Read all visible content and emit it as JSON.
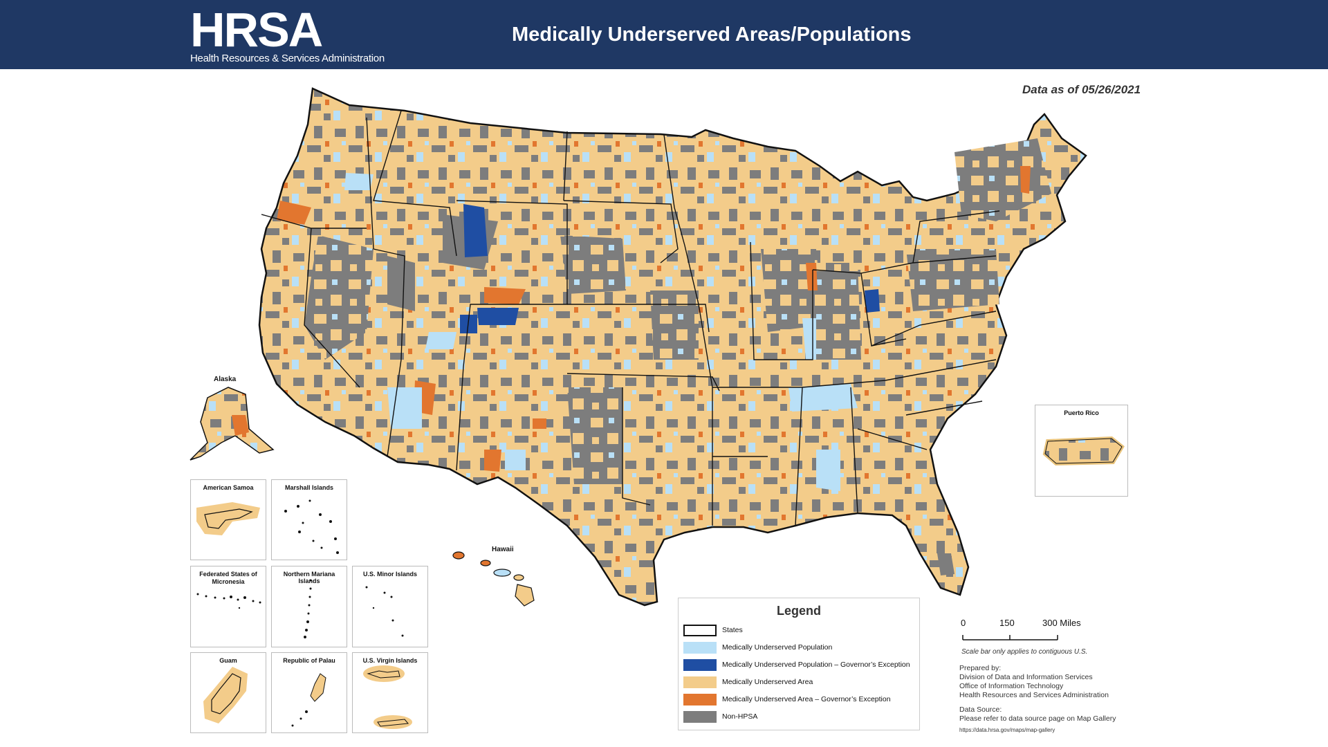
{
  "header": {
    "logo_text": "HRSA",
    "logo_subtitle": "Health Resources & Services Administration",
    "title": "Medically Underserved Areas/Populations",
    "background_color": "#1f3864"
  },
  "data_as_of": "Data as of 05/26/2021",
  "map_labels": {
    "alaska": "Alaska",
    "hawaii": "Hawaii",
    "puerto_rico": "Puerto Rico"
  },
  "insets": {
    "american_samoa": "American Samoa",
    "marshall_islands": "Marshall Islands",
    "micronesia": "Federated States of Micronesia",
    "northern_mariana": "Northern Mariana Islands",
    "minor_islands": "U.S. Minor Islands",
    "guam": "Guam",
    "palau": "Republic of Palau",
    "virgin_islands": "U.S. Virgin Islands"
  },
  "legend": {
    "title": "Legend",
    "items": [
      {
        "label": "States",
        "color": "#ffffff",
        "outline": true
      },
      {
        "label": "Medically Underserved Population",
        "color": "#b9e0f7"
      },
      {
        "label": "Medically Underserved Population – Governor’s Exception",
        "color": "#1f4ea3"
      },
      {
        "label": "Medically Underserved Area",
        "color": "#f3cc8a"
      },
      {
        "label": "Medically Underserved Area – Governor’s Exception",
        "color": "#e2762f"
      },
      {
        "label": "Non-HPSA",
        "color": "#7d7d7d"
      }
    ]
  },
  "scale_bar": {
    "ticks": [
      "0",
      "150",
      "300 Miles"
    ],
    "note": "Scale bar only applies to contiguous U.S."
  },
  "credits": {
    "prepared_by_label": "Prepared by:",
    "prepared_by": [
      "Division of Data and Information Services",
      "Office of Information Technology",
      "Health Resources and Services Administration"
    ],
    "data_source_label": "Data Source:",
    "data_source": "Please refer to data source page on Map Gallery",
    "url": "https://data.hrsa.gov/maps/map-gallery"
  }
}
